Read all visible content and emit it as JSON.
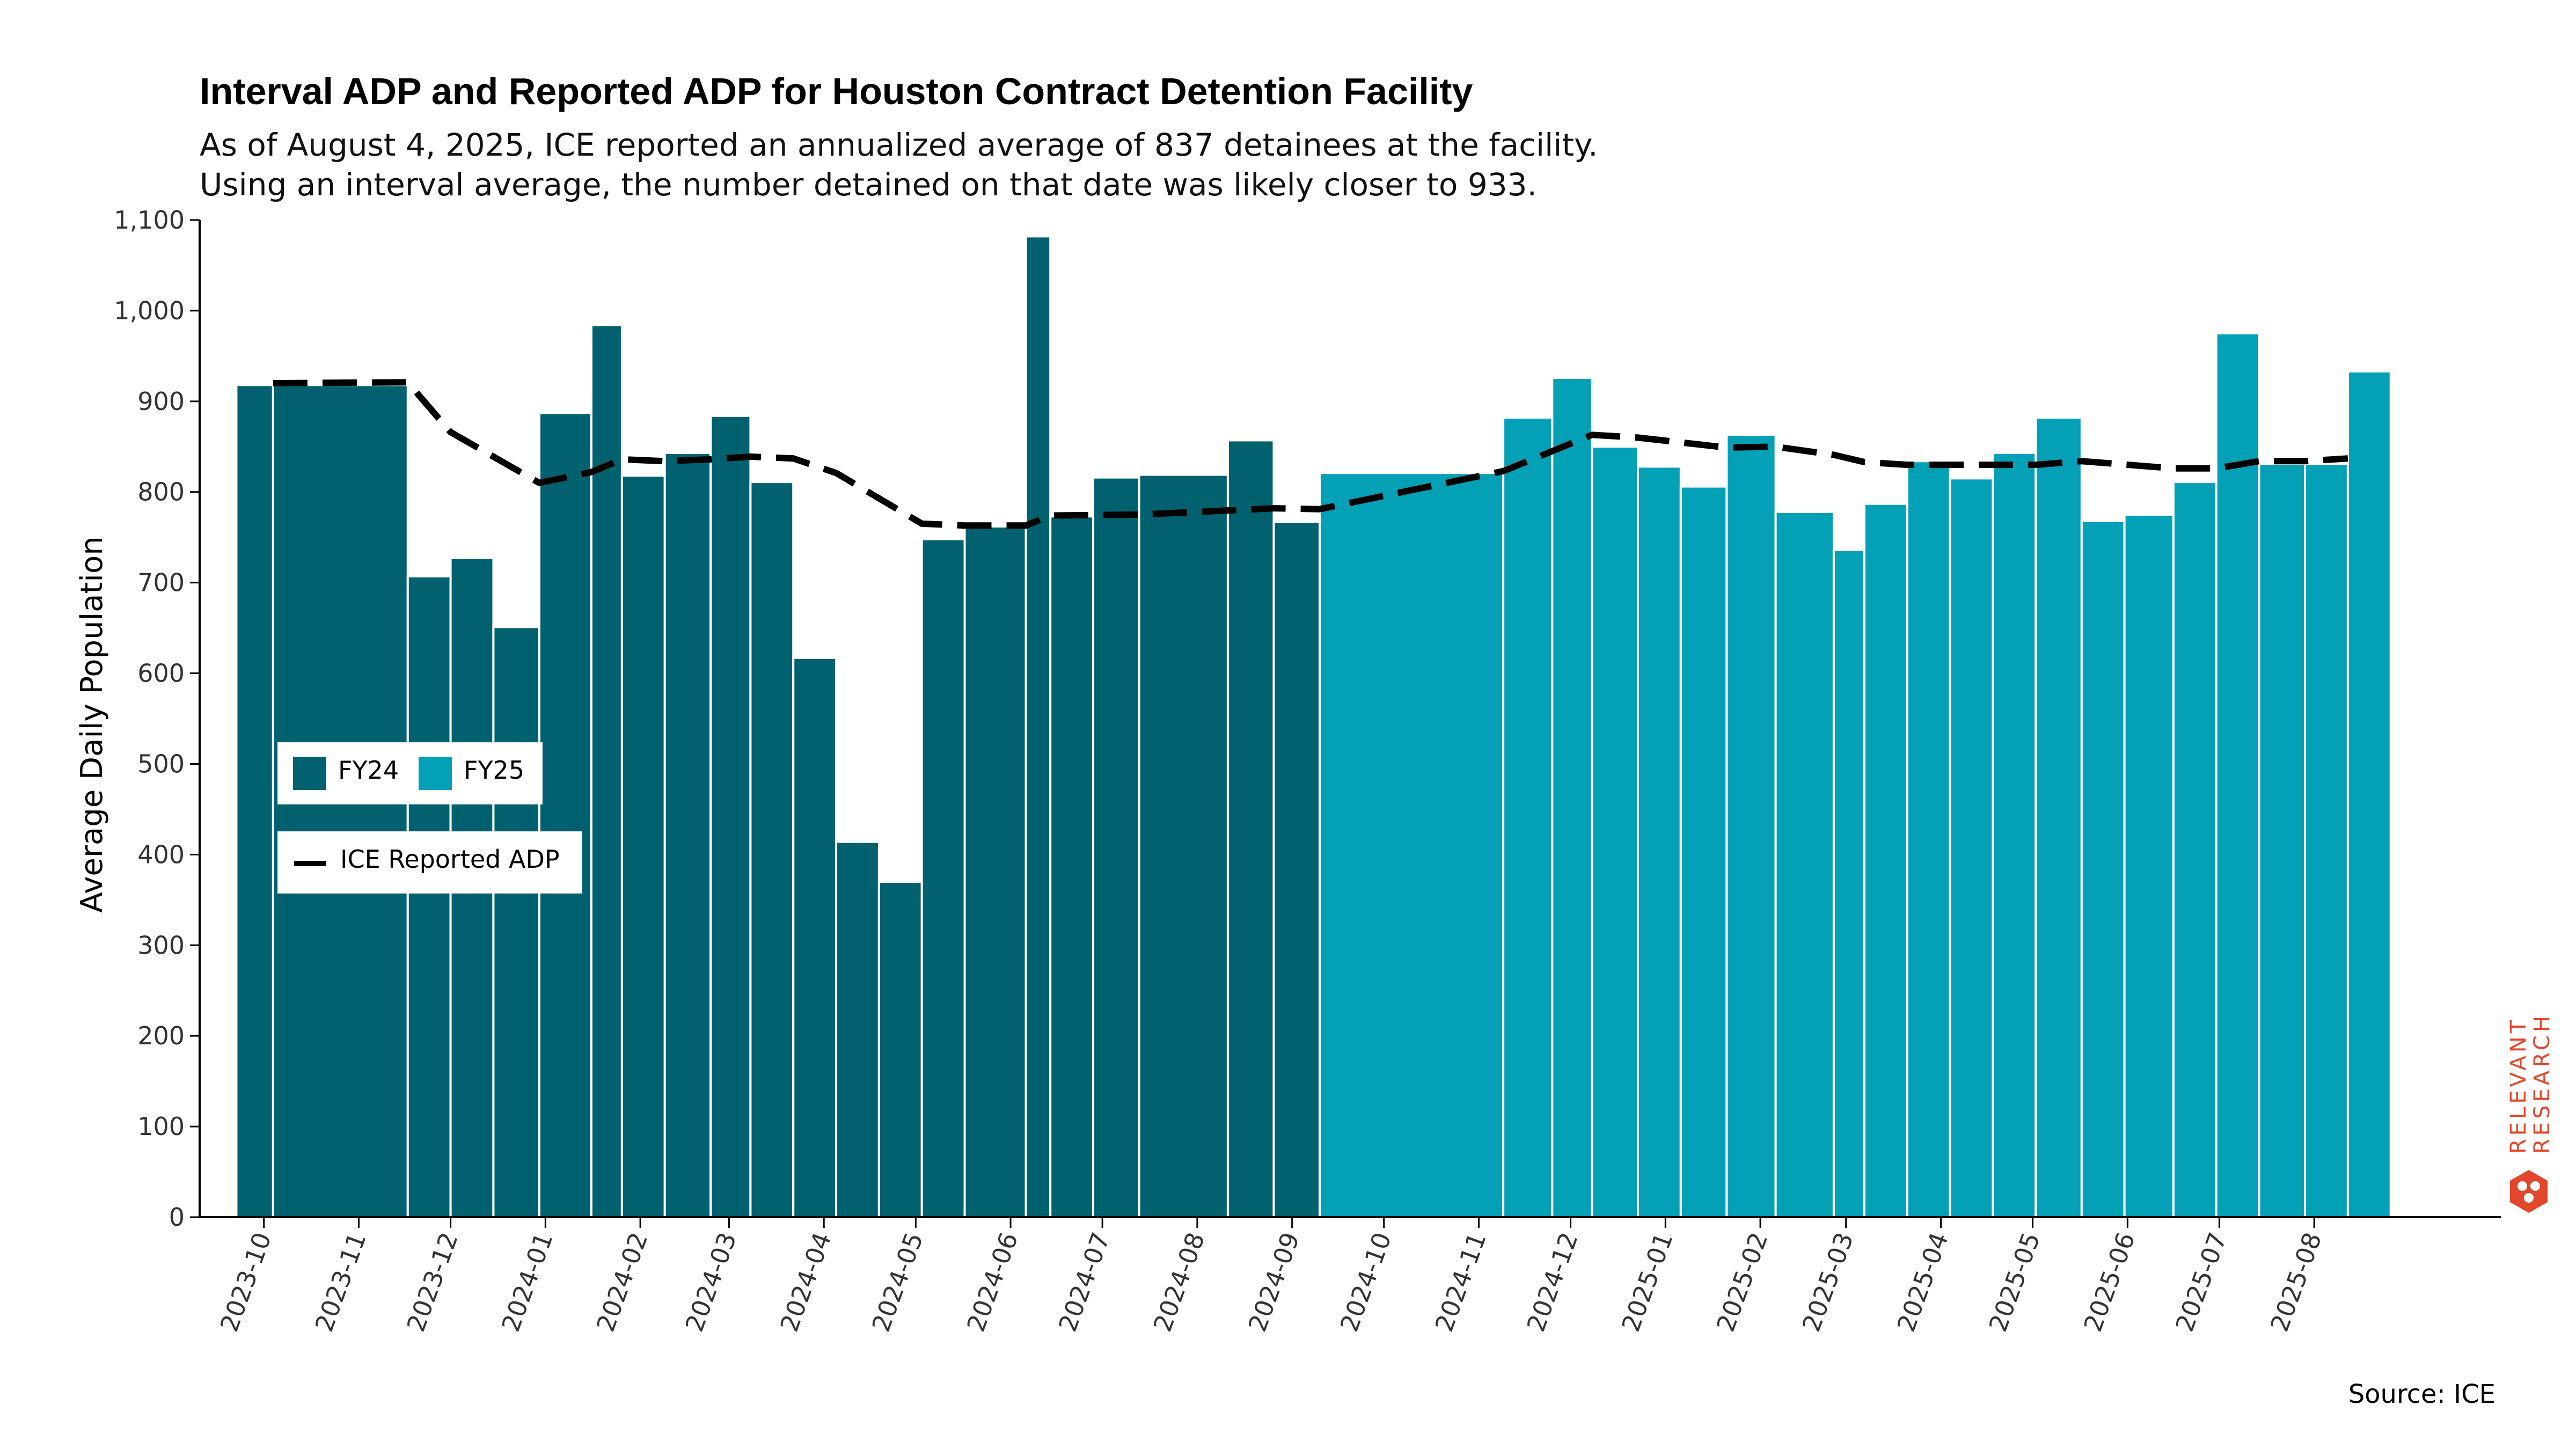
{
  "title": "Interval ADP and Reported ADP for Houston Contract Detention Facility",
  "subtitle_lines": [
    "As of August 4, 2025, ICE reported an annualized average of 837 detainees at the facility.",
    "Using an interval average, the number detained on that date was likely closer to 933."
  ],
  "source": "Source: ICE",
  "logo": {
    "line1": "RELEVANT",
    "line2": "RESEARCH"
  },
  "colors": {
    "FY24": "#02616e",
    "FY25": "#03a0b6",
    "ice_line": "#000000",
    "logo": "#e2472c"
  },
  "legend": {
    "fy24": "FY24",
    "fy25": "FY25",
    "ice": "ICE Reported ADP",
    "placement": "left-middle"
  },
  "chart_data": {
    "type": "bar",
    "ylabel": "Average Daily Population",
    "xlabel": "",
    "ylim": [
      0,
      1100
    ],
    "yticks": [
      0,
      100,
      200,
      300,
      400,
      500,
      600,
      700,
      800,
      900,
      1000,
      1100
    ],
    "ytick_labels": [
      "0",
      "100",
      "200",
      "300",
      "400",
      "500",
      "600",
      "700",
      "800",
      "900",
      "1,000",
      "1,100"
    ],
    "xticks": [
      "2023-10-01",
      "2023-11-01",
      "2023-12-01",
      "2024-01-01",
      "2024-02-01",
      "2024-03-01",
      "2024-04-01",
      "2024-05-01",
      "2024-06-01",
      "2024-07-01",
      "2024-08-01",
      "2024-09-01",
      "2024-10-01",
      "2024-11-01",
      "2024-12-01",
      "2025-01-01",
      "2025-02-01",
      "2025-03-01",
      "2025-04-01",
      "2025-05-01",
      "2025-06-01",
      "2025-07-01",
      "2025-08-01"
    ],
    "xtick_labels": [
      "2023-10",
      "2023-11",
      "2023-12",
      "2024-01",
      "2024-02",
      "2024-03",
      "2024-04",
      "2024-05",
      "2024-06",
      "2024-07",
      "2024-08",
      "2024-09",
      "2024-10",
      "2024-11",
      "2024-12",
      "2025-01",
      "2025-02",
      "2025-03",
      "2025-04",
      "2025-05",
      "2025-06",
      "2025-07",
      "2025-08"
    ],
    "grid": false,
    "series": [
      {
        "name": "FY24",
        "intervals": [
          {
            "start": "2023-09-22",
            "end": "2023-10-04",
            "value": 918
          },
          {
            "start": "2023-10-04",
            "end": "2023-11-17",
            "value": 918
          },
          {
            "start": "2023-11-17",
            "end": "2023-12-01",
            "value": 707
          },
          {
            "start": "2023-12-01",
            "end": "2023-12-15",
            "value": 727
          },
          {
            "start": "2023-12-15",
            "end": "2023-12-30",
            "value": 651
          },
          {
            "start": "2023-12-30",
            "end": "2024-01-16",
            "value": 887
          },
          {
            "start": "2024-01-16",
            "end": "2024-01-26",
            "value": 984
          },
          {
            "start": "2024-01-26",
            "end": "2024-02-09",
            "value": 818
          },
          {
            "start": "2024-02-09",
            "end": "2024-02-24",
            "value": 843
          },
          {
            "start": "2024-02-24",
            "end": "2024-03-08",
            "value": 884
          },
          {
            "start": "2024-03-08",
            "end": "2024-03-22",
            "value": 811
          },
          {
            "start": "2024-03-22",
            "end": "2024-04-05",
            "value": 617
          },
          {
            "start": "2024-04-05",
            "end": "2024-04-19",
            "value": 414
          },
          {
            "start": "2024-04-19",
            "end": "2024-05-03",
            "value": 370
          },
          {
            "start": "2024-05-03",
            "end": "2024-05-17",
            "value": 748
          },
          {
            "start": "2024-05-17",
            "end": "2024-06-06",
            "value": 762
          },
          {
            "start": "2024-06-06",
            "end": "2024-06-14",
            "value": 1082
          },
          {
            "start": "2024-06-14",
            "end": "2024-06-28",
            "value": 773
          },
          {
            "start": "2024-06-28",
            "end": "2024-07-13",
            "value": 816
          },
          {
            "start": "2024-07-13",
            "end": "2024-08-11",
            "value": 819
          },
          {
            "start": "2024-08-11",
            "end": "2024-08-26",
            "value": 857
          },
          {
            "start": "2024-08-26",
            "end": "2024-09-10",
            "value": 767
          }
        ]
      },
      {
        "name": "FY25",
        "intervals": [
          {
            "start": "2024-09-10",
            "end": "2024-11-09",
            "value": 821
          },
          {
            "start": "2024-11-09",
            "end": "2024-11-25",
            "value": 882
          },
          {
            "start": "2024-11-25",
            "end": "2024-12-08",
            "value": 926
          },
          {
            "start": "2024-12-08",
            "end": "2024-12-23",
            "value": 850
          },
          {
            "start": "2024-12-23",
            "end": "2025-01-06",
            "value": 828
          },
          {
            "start": "2025-01-06",
            "end": "2025-01-21",
            "value": 806
          },
          {
            "start": "2025-01-21",
            "end": "2025-02-06",
            "value": 863
          },
          {
            "start": "2025-02-06",
            "end": "2025-02-25",
            "value": 778
          },
          {
            "start": "2025-02-25",
            "end": "2025-03-07",
            "value": 736
          },
          {
            "start": "2025-03-07",
            "end": "2025-03-21",
            "value": 787
          },
          {
            "start": "2025-03-21",
            "end": "2025-04-04",
            "value": 834
          },
          {
            "start": "2025-04-04",
            "end": "2025-04-18",
            "value": 815
          },
          {
            "start": "2025-04-18",
            "end": "2025-05-02",
            "value": 843
          },
          {
            "start": "2025-05-02",
            "end": "2025-05-17",
            "value": 882
          },
          {
            "start": "2025-05-17",
            "end": "2025-05-31",
            "value": 768
          },
          {
            "start": "2025-05-31",
            "end": "2025-06-16",
            "value": 775
          },
          {
            "start": "2025-06-16",
            "end": "2025-06-30",
            "value": 811
          },
          {
            "start": "2025-06-30",
            "end": "2025-07-14",
            "value": 975
          },
          {
            "start": "2025-07-14",
            "end": "2025-07-29",
            "value": 831
          },
          {
            "start": "2025-07-29",
            "end": "2025-08-12",
            "value": 831
          },
          {
            "start": "2025-08-12",
            "end": "2025-08-26",
            "value": 933
          }
        ]
      },
      {
        "name": "ICE Reported ADP",
        "type": "line",
        "style": "dashed",
        "points": [
          {
            "x": "2023-10-04",
            "y": 920
          },
          {
            "x": "2023-11-17",
            "y": 921
          },
          {
            "x": "2023-12-01",
            "y": 866
          },
          {
            "x": "2023-12-30",
            "y": 810
          },
          {
            "x": "2024-01-16",
            "y": 822
          },
          {
            "x": "2024-01-26",
            "y": 836
          },
          {
            "x": "2024-02-09",
            "y": 834
          },
          {
            "x": "2024-02-24",
            "y": 836
          },
          {
            "x": "2024-03-08",
            "y": 839
          },
          {
            "x": "2024-03-22",
            "y": 837
          },
          {
            "x": "2024-04-05",
            "y": 821
          },
          {
            "x": "2024-05-03",
            "y": 765
          },
          {
            "x": "2024-05-17",
            "y": 763
          },
          {
            "x": "2024-06-06",
            "y": 763
          },
          {
            "x": "2024-06-14",
            "y": 774
          },
          {
            "x": "2024-07-13",
            "y": 775
          },
          {
            "x": "2024-08-26",
            "y": 782
          },
          {
            "x": "2024-09-10",
            "y": 781
          },
          {
            "x": "2024-10-10",
            "y": 802
          },
          {
            "x": "2024-11-09",
            "y": 823
          },
          {
            "x": "2024-11-25",
            "y": 845
          },
          {
            "x": "2024-12-08",
            "y": 863
          },
          {
            "x": "2024-12-23",
            "y": 860
          },
          {
            "x": "2025-01-21",
            "y": 849
          },
          {
            "x": "2025-02-06",
            "y": 850
          },
          {
            "x": "2025-02-25",
            "y": 841
          },
          {
            "x": "2025-03-07",
            "y": 833
          },
          {
            "x": "2025-03-21",
            "y": 830
          },
          {
            "x": "2025-04-18",
            "y": 830
          },
          {
            "x": "2025-05-02",
            "y": 830
          },
          {
            "x": "2025-05-17",
            "y": 834
          },
          {
            "x": "2025-06-16",
            "y": 826
          },
          {
            "x": "2025-06-30",
            "y": 826
          },
          {
            "x": "2025-07-14",
            "y": 834
          },
          {
            "x": "2025-07-29",
            "y": 834
          },
          {
            "x": "2025-08-12",
            "y": 837
          }
        ]
      }
    ]
  }
}
